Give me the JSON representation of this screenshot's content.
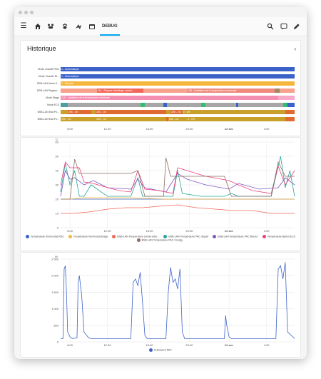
{
  "toolbar": {
    "tab_label": "DEBUG",
    "icons": [
      "menu-icon",
      "home-icon",
      "vehicle-icon",
      "paw-icon",
      "bolt-icon",
      "calendar-icon"
    ],
    "right_icons": [
      "search-icon",
      "chat-icon",
      "edit-icon"
    ]
  },
  "history": {
    "title": "Historique",
    "rows": [
      {
        "label": "Mode chauffe RDC",
        "segments": [
          {
            "text": "1 - Automatique",
            "color": "#3a62c9",
            "start": 0,
            "end": 1
          }
        ]
      },
      {
        "label": "Mode Chauffe Et...",
        "segments": [
          {
            "text": "1 - Automatique",
            "color": "#3a62c9",
            "start": 0,
            "end": 1
          }
        ]
      },
      {
        "label": "BSB-LAN Mode E...",
        "segments": [
          {
            "text": "1 - Marche",
            "color": "#f5b63b",
            "start": 0,
            "end": 1
          }
        ]
      },
      {
        "label": "BSB-LAN Régime...",
        "segments": [
          {
            "text": "",
            "color": "#f8a18c",
            "start": 0,
            "end": 0.155
          },
          {
            "text": "114 - Régime chauffage confort",
            "color": "#f26758",
            "start": 0.155,
            "end": 0.355
          },
          {
            "text": "",
            "color": "#f8a18c",
            "start": 0.355,
            "end": 0.54
          },
          {
            "text": "125 - Limitation de la température maximale",
            "color": "#ef8a7d",
            "start": 0.54,
            "end": 0.915
          },
          {
            "text": "",
            "color": "#9b8a63",
            "start": 0.915,
            "end": 0.935
          },
          {
            "text": "",
            "color": "#f8a18c",
            "start": 0.935,
            "end": 1
          }
        ]
      },
      {
        "label": "Mode Etage",
        "segments": [
          {
            "text": "125 - Limitation de la température ambiante",
            "color": "#f48fb1",
            "start": 0,
            "end": 0.93
          },
          {
            "text": "",
            "color": "#f8a8c8",
            "start": 0.93,
            "end": 1
          }
        ]
      },
      {
        "label": "Mode ECS",
        "segments": [
          {
            "text": "",
            "color": "#4aa0a0",
            "start": 0,
            "end": 0.03
          },
          {
            "text": "",
            "color": "#a7a7a7",
            "start": 0.03,
            "end": 0.34
          },
          {
            "text": "",
            "color": "#2fbf71",
            "start": 0.34,
            "end": 0.36
          },
          {
            "text": "",
            "color": "#a7a7a7",
            "start": 0.36,
            "end": 0.44
          },
          {
            "text": "",
            "color": "#3a62c9",
            "start": 0.44,
            "end": 0.455
          },
          {
            "text": "",
            "color": "#a7a7a7",
            "start": 0.455,
            "end": 0.6
          },
          {
            "text": "",
            "color": "#2fbf71",
            "start": 0.6,
            "end": 0.62
          },
          {
            "text": "",
            "color": "#a7a7a7",
            "start": 0.62,
            "end": 0.75
          },
          {
            "text": "",
            "color": "#3a62c9",
            "start": 0.75,
            "end": 0.76
          },
          {
            "text": "",
            "color": "#a7a7a7",
            "start": 0.76,
            "end": 0.95
          },
          {
            "text": "",
            "color": "#2fbf71",
            "start": 0.95,
            "end": 0.97
          },
          {
            "text": "",
            "color": "#3a62c9",
            "start": 0.97,
            "end": 1
          }
        ]
      },
      {
        "label": "BSB-LAN Etat Po...",
        "segments": [
          {
            "text": "",
            "color": "#c8a02a",
            "start": 0,
            "end": 0.03
          },
          {
            "text": "255 - On",
            "color": "#e06b32",
            "start": 0.03,
            "end": 0.13
          },
          {
            "text": "",
            "color": "#c8a02a",
            "start": 0.13,
            "end": 0.15
          },
          {
            "text": "255 - On",
            "color": "#e06b32",
            "start": 0.15,
            "end": 0.45
          },
          {
            "text": "",
            "color": "#c8a02a",
            "start": 0.45,
            "end": 0.47
          },
          {
            "text": "255 - On",
            "color": "#e06b32",
            "start": 0.47,
            "end": 0.52
          },
          {
            "text": "0 - Off",
            "color": "#c8a02a",
            "start": 0.52,
            "end": 0.96
          },
          {
            "text": "",
            "color": "#e06b32",
            "start": 0.96,
            "end": 1
          }
        ]
      },
      {
        "label": "BSB-LAN Etat Po...",
        "segments": [
          {
            "text": "255 - On",
            "color": "#c8a02a",
            "start": 0,
            "end": 0.15
          },
          {
            "text": "255 - On",
            "color": "#c8a02a",
            "start": 0.15,
            "end": 0.45
          },
          {
            "text": "",
            "color": "#e06b32",
            "start": 0.45,
            "end": 0.46
          },
          {
            "text": "255 - On",
            "color": "#c8a02a",
            "start": 0.46,
            "end": 0.54
          },
          {
            "text": "0 - Off",
            "color": "#c8a02a",
            "start": 0.54,
            "end": 0.96
          },
          {
            "text": "",
            "color": "#e06b32",
            "start": 0.96,
            "end": 1
          }
        ]
      }
    ],
    "xticks": [
      {
        "label": "8:00",
        "pos": 0.04,
        "bold": false
      },
      {
        "label": "12:00",
        "pos": 0.2,
        "bold": false
      },
      {
        "label": "16:00",
        "pos": 0.38,
        "bold": false
      },
      {
        "label": "20:00",
        "pos": 0.55,
        "bold": false
      },
      {
        "label": "22 avr.",
        "pos": 0.72,
        "bold": true
      },
      {
        "label": "4:00",
        "pos": 0.88,
        "bold": false
      }
    ]
  },
  "chart_data": [
    {
      "type": "line",
      "ylabel": "°C",
      "ylim": [
        0,
        60
      ],
      "yticks": [
        0,
        10,
        20,
        30,
        40,
        50,
        60
      ],
      "xticks": [
        {
          "label": "8:00",
          "pos": 0.04,
          "bold": false
        },
        {
          "label": "12:00",
          "pos": 0.2,
          "bold": false
        },
        {
          "label": "16:00",
          "pos": 0.38,
          "bold": false
        },
        {
          "label": "20:00",
          "pos": 0.55,
          "bold": false
        },
        {
          "label": "22 avr.",
          "pos": 0.72,
          "bold": true
        },
        {
          "label": "4:00",
          "pos": 0.88,
          "bold": false
        }
      ],
      "grid": true,
      "legend_position": "bottom",
      "series": [
        {
          "name": "Température thermostat RDC",
          "color": "#3a62c9",
          "x": [
            0,
            0.04,
            0.08,
            0.15,
            0.3,
            0.45,
            0.6,
            0.75,
            0.9,
            1
          ],
          "y": [
            20,
            20,
            20,
            20,
            20,
            20,
            20,
            20,
            20,
            20
          ]
        },
        {
          "name": "Température thermostat Etage",
          "color": "#f5b63b",
          "x": [
            0,
            0.04,
            0.1,
            0.2,
            0.3,
            0.45,
            0.6,
            0.75,
            0.9,
            1
          ],
          "y": [
            20,
            20,
            21,
            21,
            21,
            20,
            20,
            20,
            20,
            20
          ]
        },
        {
          "name": "BSB-LAN Température sonde exter...",
          "color": "#f26758",
          "x": [
            0,
            0.05,
            0.12,
            0.2,
            0.28,
            0.35,
            0.42,
            0.5,
            0.58,
            0.66,
            0.74,
            0.82,
            0.9,
            1
          ],
          "y": [
            10,
            10,
            11,
            13,
            14,
            14,
            15,
            16,
            14,
            13,
            12,
            12,
            10,
            10
          ]
        },
        {
          "name": "BSB-LAN Température PAC départ",
          "color": "#26a69a",
          "x": [
            0,
            0.02,
            0.04,
            0.06,
            0.08,
            0.1,
            0.13,
            0.2,
            0.3,
            0.33,
            0.35,
            0.4,
            0.48,
            0.5,
            0.52,
            0.6,
            0.7,
            0.73,
            0.76,
            0.8,
            0.9,
            0.94,
            0.96,
            0.98,
            1
          ],
          "y": [
            25,
            45,
            30,
            40,
            22,
            22,
            30,
            22,
            22,
            35,
            22,
            22,
            22,
            40,
            24,
            22,
            22,
            24,
            22,
            22,
            22,
            50,
            28,
            40,
            22
          ]
        },
        {
          "name": "BSB-LAN Température PAC Retour",
          "color": "#7e57c2",
          "x": [
            0,
            0.02,
            0.04,
            0.06,
            0.1,
            0.14,
            0.2,
            0.3,
            0.33,
            0.36,
            0.45,
            0.5,
            0.54,
            0.62,
            0.72,
            0.76,
            0.85,
            0.93,
            0.96,
            1
          ],
          "y": [
            22,
            40,
            34,
            35,
            30,
            33,
            28,
            27,
            34,
            28,
            25,
            38,
            34,
            30,
            27,
            31,
            27,
            28,
            35,
            30
          ]
        },
        {
          "name": "Température Ballon ECS",
          "color": "#ec407a",
          "x": [
            0,
            0.02,
            0.04,
            0.08,
            0.1,
            0.14,
            0.18,
            0.25,
            0.3,
            0.33,
            0.36,
            0.42,
            0.48,
            0.5,
            0.54,
            0.62,
            0.72,
            0.76,
            0.82,
            0.9,
            0.93,
            0.96,
            1
          ],
          "y": [
            30,
            46,
            42,
            42,
            32,
            31,
            29,
            26,
            25,
            40,
            27,
            26,
            24,
            42,
            40,
            36,
            33,
            30,
            26,
            24,
            43,
            30,
            40
          ]
        },
        {
          "name": "BSB-LAN Température PAC Consig...",
          "color": "#8d6e63",
          "x": [
            0,
            0.04,
            0.06,
            0.08,
            0.12,
            0.3,
            0.33,
            0.36,
            0.44,
            0.45,
            0.47,
            0.7,
            0.73,
            0.78,
            0.9,
            0.93,
            0.96,
            1
          ],
          "y": [
            20,
            20,
            48,
            38,
            38,
            38,
            40,
            22,
            22,
            49,
            36,
            36,
            22,
            22,
            22,
            46,
            36,
            36
          ]
        }
      ]
    },
    {
      "type": "line",
      "ylabel": "W",
      "ylim": [
        0,
        2500
      ],
      "yticks": [
        0,
        500,
        1000,
        1500,
        2000,
        2500
      ],
      "xticks": [
        {
          "label": "8:00",
          "pos": 0.04,
          "bold": false
        },
        {
          "label": "12:00",
          "pos": 0.2,
          "bold": false
        },
        {
          "label": "16:00",
          "pos": 0.38,
          "bold": false
        },
        {
          "label": "20:00",
          "pos": 0.55,
          "bold": false
        },
        {
          "label": "22 avr.",
          "pos": 0.72,
          "bold": true
        },
        {
          "label": "4:00",
          "pos": 0.88,
          "bold": false
        }
      ],
      "grid": true,
      "legend_position": "bottom",
      "series": [
        {
          "name": "Puissance PAC",
          "color": "#3a62c9",
          "x": [
            0,
            0.01,
            0.015,
            0.02,
            0.025,
            0.03,
            0.04,
            0.05,
            0.07,
            0.075,
            0.08,
            0.09,
            0.1,
            0.12,
            0.13,
            0.14,
            0.3,
            0.31,
            0.32,
            0.33,
            0.34,
            0.35,
            0.36,
            0.37,
            0.45,
            0.46,
            0.47,
            0.48,
            0.49,
            0.5,
            0.51,
            0.52,
            0.53,
            0.7,
            0.705,
            0.71,
            0.72,
            0.73,
            0.74,
            0.92,
            0.93,
            0.94,
            0.95,
            0.96,
            0.97,
            1
          ],
          "y": [
            100,
            100,
            2200,
            2300,
            1500,
            300,
            150,
            100,
            120,
            1800,
            2000,
            1400,
            300,
            120,
            100,
            100,
            100,
            1800,
            1900,
            1700,
            2100,
            1200,
            200,
            100,
            100,
            1500,
            2250,
            1800,
            1900,
            1600,
            2200,
            300,
            100,
            100,
            800,
            500,
            150,
            100,
            100,
            100,
            2200,
            2300,
            1900,
            2400,
            300,
            100
          ]
        }
      ]
    }
  ]
}
